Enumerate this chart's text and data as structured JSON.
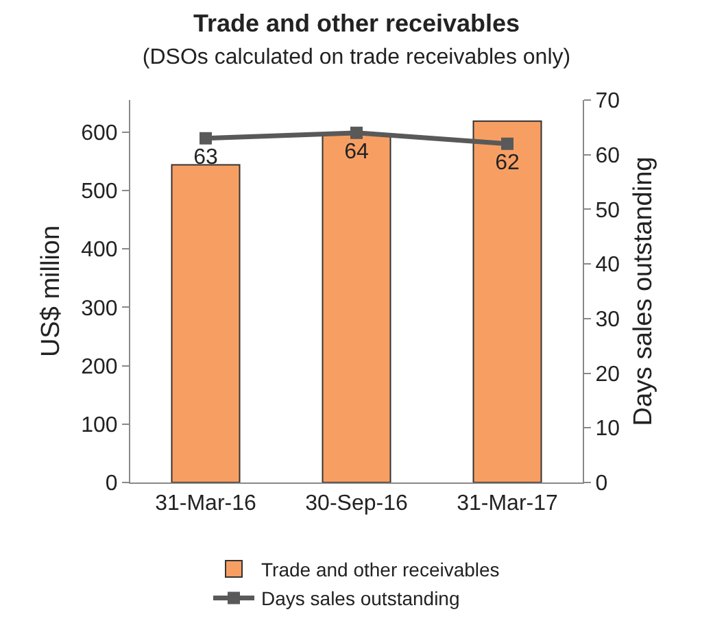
{
  "chart_data": {
    "type": "bar",
    "title": "Trade and other receivables",
    "subtitle": "(DSOs calculated on trade receivables only)",
    "ylabel": "US$ million",
    "y2label": "Days sales outstanding",
    "categories": [
      "31-Mar-16",
      "30-Sep-16",
      "31-Mar-17"
    ],
    "series": [
      {
        "name": "Trade and other receivables",
        "color": "#f79f63",
        "values": [
          544,
          596,
          619
        ]
      },
      {
        "name": "Days sales outstanding",
        "type": "line",
        "axis": "y2",
        "color": "#595959",
        "values": [
          63,
          64,
          62
        ],
        "data_labels": true,
        "marker": "square"
      }
    ],
    "ylim": [
      0,
      655
    ],
    "yticks": [
      0,
      100,
      200,
      300,
      400,
      500,
      600
    ],
    "y2lim": [
      0,
      70
    ],
    "y2ticks": [
      0,
      10,
      20,
      30,
      40,
      50,
      60,
      70
    ],
    "grid": false,
    "legend": "bottom"
  }
}
